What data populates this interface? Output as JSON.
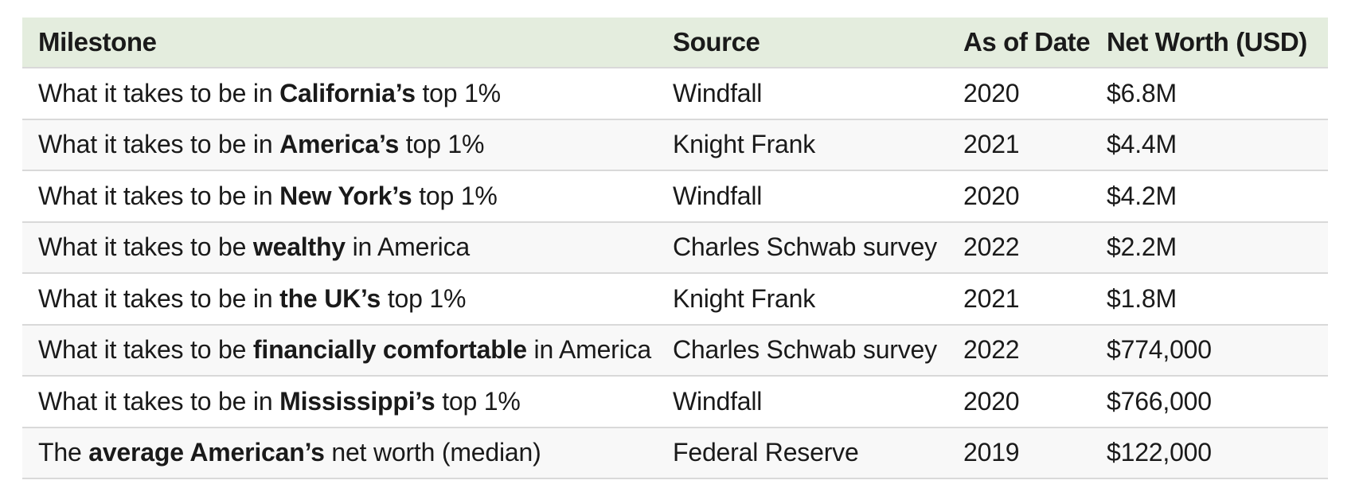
{
  "colors": {
    "header_bg": "#e4edde",
    "row_alt_bg": "#f8f8f8",
    "divider_color": "#d9d9d9",
    "text_color": "#1a1a1a",
    "page_bg": "#ffffff"
  },
  "table": {
    "headers": [
      {
        "label": "Milestone"
      },
      {
        "label": "Source"
      },
      {
        "label": "As of Date"
      },
      {
        "label": "Net Worth (USD)"
      }
    ],
    "rows": [
      {
        "milestone": {
          "pre": "What it takes to be in ",
          "bold": "California’s",
          "post": " top 1%"
        },
        "source": "Windfall",
        "as_of_date": "2020",
        "net_worth": "$6.8M"
      },
      {
        "milestone": {
          "pre": "What it takes to be in ",
          "bold": "America’s",
          "post": " top 1%"
        },
        "source": "Knight Frank",
        "as_of_date": "2021",
        "net_worth": "$4.4M"
      },
      {
        "milestone": {
          "pre": "What it takes to be in ",
          "bold": "New York’s",
          "post": " top 1%"
        },
        "source": "Windfall",
        "as_of_date": "2020",
        "net_worth": "$4.2M"
      },
      {
        "milestone": {
          "pre": "What it takes to be ",
          "bold": "wealthy",
          "post": " in America"
        },
        "source": "Charles Schwab survey",
        "as_of_date": "2022",
        "net_worth": "$2.2M"
      },
      {
        "milestone": {
          "pre": "What it takes to be in ",
          "bold": "the UK’s",
          "post": " top 1%"
        },
        "source": "Knight Frank",
        "as_of_date": "2021",
        "net_worth": "$1.8M"
      },
      {
        "milestone": {
          "pre": "What it takes to be ",
          "bold": "financially comfortable",
          "post": " in America"
        },
        "source": "Charles Schwab survey",
        "as_of_date": "2022",
        "net_worth": "$774,000"
      },
      {
        "milestone": {
          "pre": "What it takes to be in ",
          "bold": "Mississippi’s",
          "post": " top 1%"
        },
        "source": "Windfall",
        "as_of_date": "2020",
        "net_worth": "$766,000"
      },
      {
        "milestone": {
          "pre": "The ",
          "bold": "average American’s",
          "post": " net worth (median)"
        },
        "source": "Federal Reserve",
        "as_of_date": "2019",
        "net_worth": "$122,000"
      }
    ]
  },
  "chart_data": {
    "type": "table",
    "title": "",
    "columns": [
      "Milestone",
      "Source",
      "As of Date",
      "Net Worth (USD)"
    ],
    "rows": [
      [
        "What it takes to be in California’s top 1%",
        "Windfall",
        "2020",
        "$6.8M"
      ],
      [
        "What it takes to be in America’s top 1%",
        "Knight Frank",
        "2021",
        "$4.4M"
      ],
      [
        "What it takes to be in New York’s top 1%",
        "Windfall",
        "2020",
        "$4.2M"
      ],
      [
        "What it takes to be wealthy in America",
        "Charles Schwab survey",
        "2022",
        "$2.2M"
      ],
      [
        "What it takes to be in the UK’s top 1%",
        "Knight Frank",
        "2021",
        "$1.8M"
      ],
      [
        "What it takes to be financially comfortable in America",
        "Charles Schwab survey",
        "2022",
        "$774,000"
      ],
      [
        "What it takes to be in Mississippi’s top 1%",
        "Windfall",
        "2020",
        "$766,000"
      ],
      [
        "The average American’s net worth (median)",
        "Federal Reserve",
        "2019",
        "$122,000"
      ]
    ],
    "layout": {
      "zebra_striping": true,
      "header_background": "#e4edde",
      "alt_row_background": "#f8f8f8"
    }
  }
}
